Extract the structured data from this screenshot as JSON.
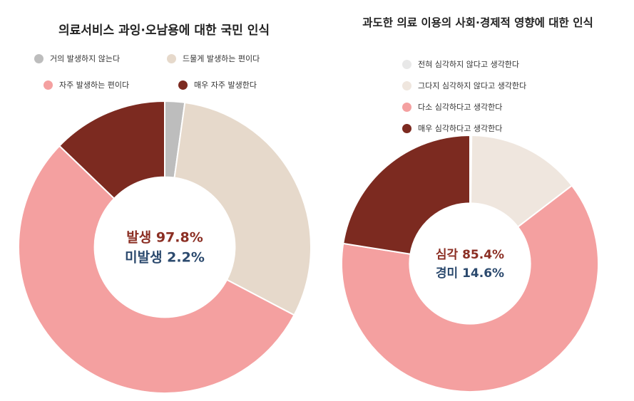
{
  "chart_data": [
    {
      "type": "pie",
      "title": "의료서비스 과잉·오남용에 대한 국민 인식",
      "categories": [
        "거의 발생하지 않는다",
        "드물게 발생하는 편이다",
        "자주 발생하는 편이다",
        "매우 자주 발생한다"
      ],
      "values": [
        2.2,
        30.5,
        54.5,
        12.8
      ],
      "colors": [
        "#bdbdbd",
        "#e6d9cb",
        "#f4a0a0",
        "#7c2a20"
      ],
      "legend_position": "top",
      "center_labels": [
        {
          "text": "발생 97.8%",
          "color": "#8b2e23"
        },
        {
          "text": "미발생 2.2%",
          "color": "#2c4a6e"
        }
      ]
    },
    {
      "type": "pie",
      "title": "과도한 의료 이용의 사회·경제적 영향에 대한 인식",
      "categories": [
        "전혀 심각하지 않다고 생각한다",
        "그다지 심각하지 않다고 생각한다",
        "다소 심각하다고 생각한다",
        "매우 심각하다고 생각한다"
      ],
      "values": [
        0.2,
        14.4,
        62.9,
        22.5
      ],
      "colors": [
        "#e8e8e8",
        "#efe6de",
        "#f4a0a0",
        "#7c2a20"
      ],
      "legend_position": "top",
      "center_labels": [
        {
          "text": "심각 85.4%",
          "color": "#8b2e23"
        },
        {
          "text": "경미 14.6%",
          "color": "#2c4a6e"
        }
      ]
    }
  ]
}
